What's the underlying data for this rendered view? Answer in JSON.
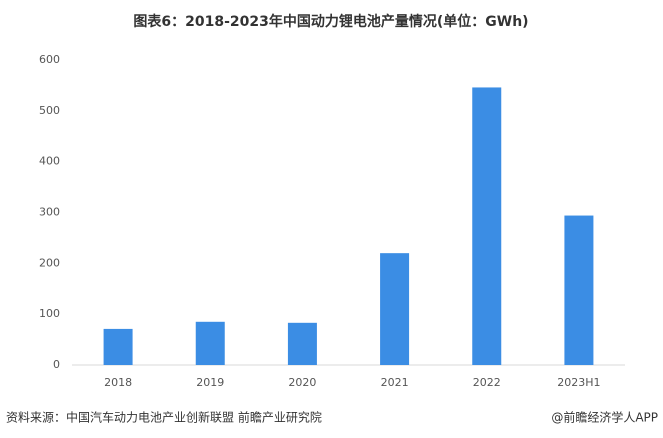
{
  "chart_data": {
    "type": "bar",
    "title": "图表6：2018-2023年中国动力锂电池产量情况(单位：GWh)",
    "categories": [
      "2018",
      "2019",
      "2020",
      "2021",
      "2022",
      "2023H1"
    ],
    "values": [
      71,
      85,
      83,
      220,
      546,
      294
    ],
    "color": "#3b8de4",
    "ylim": [
      0,
      600
    ],
    "yticks": [
      0,
      100,
      200,
      300,
      400,
      500,
      600
    ],
    "grid": false,
    "source": "资料来源：中国汽车动力电池产业创新联盟 前瞻产业研究院",
    "credit": "@前瞻经济学人APP"
  }
}
